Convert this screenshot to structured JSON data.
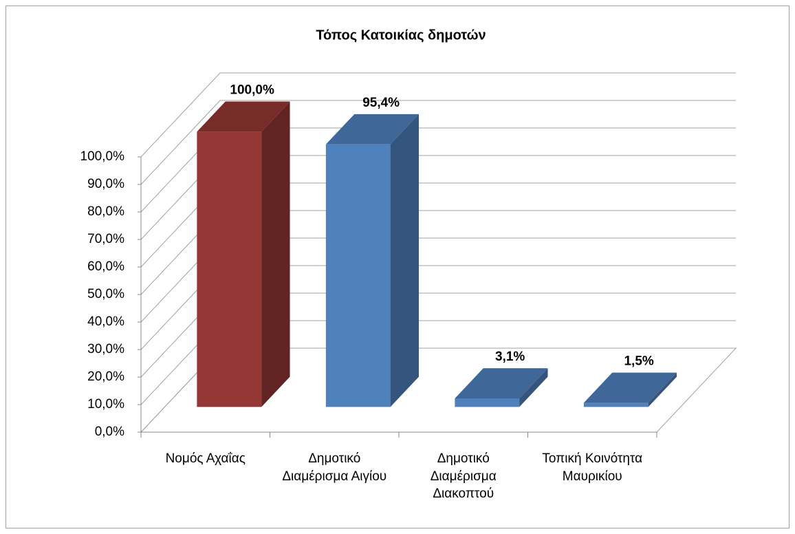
{
  "chart_data": {
    "type": "bar3d",
    "title": "Τόπος Κατοικίας δημοτών",
    "categories": [
      "Νομός Αχαΐας",
      "Δημοτικό Διαμέρισμα Αιγίου",
      "Δημοτικό Διαμέρισμα Διακοπτού",
      "Τοπική Κοινότητα Μαυρικίου"
    ],
    "values": [
      100,
      95.4,
      3.1,
      1.5
    ],
    "value_labels": [
      "100,0%",
      "95,4%",
      "3,1%",
      "1,5%"
    ],
    "colors": [
      "#953735",
      "#4f81bd",
      "#4f81bd",
      "#4f81bd"
    ],
    "ylim": [
      0,
      100
    ],
    "yticks": [
      {
        "value": 0,
        "label": "0,0%"
      },
      {
        "value": 10,
        "label": "10,0%"
      },
      {
        "value": 20,
        "label": "20,0%"
      },
      {
        "value": 30,
        "label": "30,0%"
      },
      {
        "value": 40,
        "label": "40,0%"
      },
      {
        "value": 50,
        "label": "50,0%"
      },
      {
        "value": 60,
        "label": "60,0%"
      },
      {
        "value": 70,
        "label": "70,0%"
      },
      {
        "value": 80,
        "label": "80,0%"
      },
      {
        "value": 90,
        "label": "90,0%"
      },
      {
        "value": 100,
        "label": "100,0%"
      }
    ],
    "grid": true
  }
}
